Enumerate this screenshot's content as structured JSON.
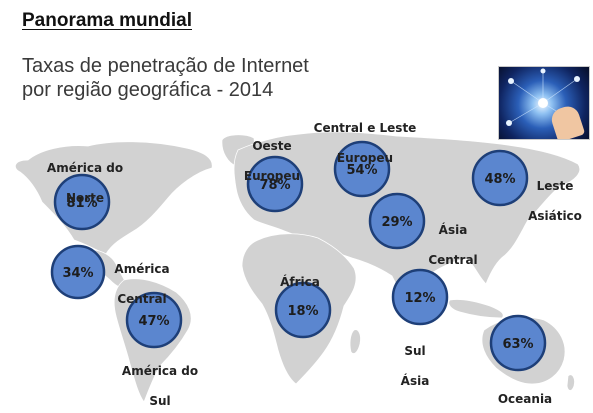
{
  "slide": {
    "heading": "Panorama mundial",
    "subtitle_line1": "Taxas de penetração de Internet",
    "subtitle_line2": "por região geográfica - 2014"
  },
  "chart_data": {
    "type": "map",
    "title": "Taxas de penetração de Internet por região geográfica - 2014",
    "unit": "%",
    "series": [
      {
        "name": "Taxa de penetração de Internet",
        "categories": [
          "América do Norte",
          "América Central",
          "América do Sul",
          "Oeste Europeu",
          "Central e Leste Europeu",
          "Ásia Central",
          "África",
          "Sul Ásia",
          "Leste Asiático",
          "Oceania"
        ],
        "values": [
          81,
          34,
          47,
          78,
          54,
          29,
          18,
          12,
          48,
          63
        ]
      }
    ],
    "regions": [
      {
        "label_line1": "América do",
        "label_line2": "Norte",
        "value": 81,
        "value_text": "81%"
      },
      {
        "label_line1": "América",
        "label_line2": "Central",
        "value": 34,
        "value_text": "34%"
      },
      {
        "label_line1": "América do",
        "label_line2": "Sul",
        "value": 47,
        "value_text": "47%"
      },
      {
        "label_line1": "Oeste",
        "label_line2": "Europeu",
        "value": 78,
        "value_text": "78%"
      },
      {
        "label_line1": "Central e Leste",
        "label_line2": "Europeu",
        "value": 54,
        "value_text": "54%"
      },
      {
        "label_line1": "Ásia",
        "label_line2": "Central",
        "value": 29,
        "value_text": "29%"
      },
      {
        "label_line1": "África",
        "label_line2": "",
        "value": 18,
        "value_text": "18%"
      },
      {
        "label_line1": "Sul",
        "label_line2": "Ásia",
        "value": 12,
        "value_text": "12%"
      },
      {
        "label_line1": "Leste",
        "label_line2": "Asiático",
        "value": 48,
        "value_text": "48%"
      },
      {
        "label_line1": "Oceania",
        "label_line2": "",
        "value": 63,
        "value_text": "63%"
      }
    ],
    "colors": {
      "bubble_fill": "#5b86cf",
      "bubble_stroke": "#1e3f78",
      "land": "#d2d2d2",
      "thumbnail_dark": "#0f2460",
      "thumbnail_light": "#8fc1f2"
    }
  }
}
